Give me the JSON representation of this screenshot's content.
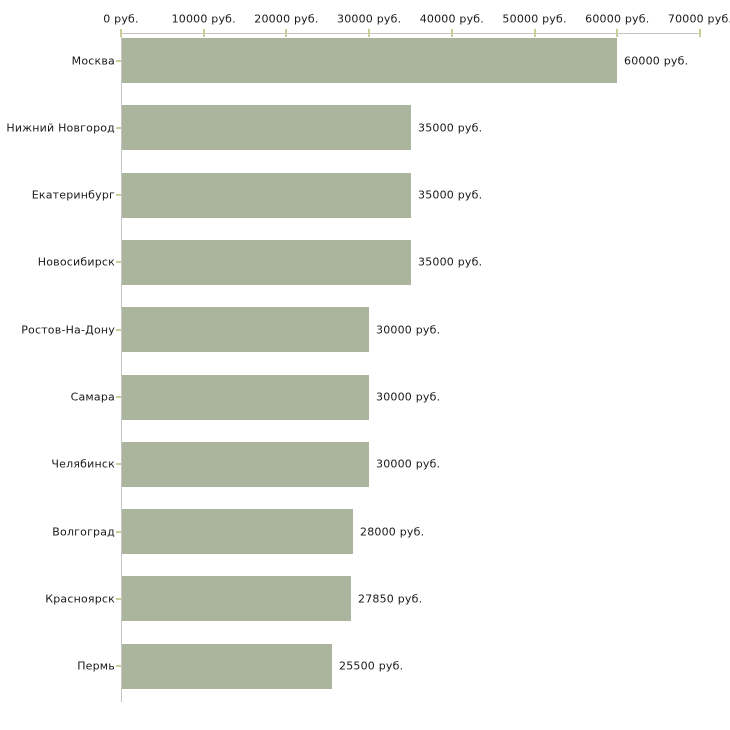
{
  "chart_data": {
    "type": "bar",
    "orientation": "horizontal",
    "title": "",
    "categories": [
      "Москва",
      "Нижний Новгород",
      "Екатеринбург",
      "Новосибирск",
      "Ростов-На-Дону",
      "Самара",
      "Челябинск",
      "Волгоград",
      "Красноярск",
      "Пермь"
    ],
    "values": [
      60000,
      35000,
      35000,
      35000,
      30000,
      30000,
      30000,
      28000,
      27850,
      25500
    ],
    "value_labels": [
      "60000 руб.",
      "35000 руб.",
      "35000 руб.",
      "35000 руб.",
      "30000 руб.",
      "30000 руб.",
      "30000 руб.",
      "28000 руб.",
      "27850 руб.",
      "25500 руб."
    ],
    "x_axis": {
      "min": 0,
      "max": 70000,
      "tick_step": 10000,
      "position": "top",
      "tick_labels": [
        "0 руб.",
        "10000 руб.",
        "20000 руб.",
        "30000 руб.",
        "40000 руб.",
        "50000 руб.",
        "60000 руб.",
        "70000 руб."
      ]
    },
    "grid": false,
    "legend": false,
    "colors": {
      "bar": "#abb49c",
      "axis_line": "#c4c4c4",
      "tick": "#cccc99",
      "text": "#1a1a1a",
      "background": "#ffffff"
    }
  }
}
